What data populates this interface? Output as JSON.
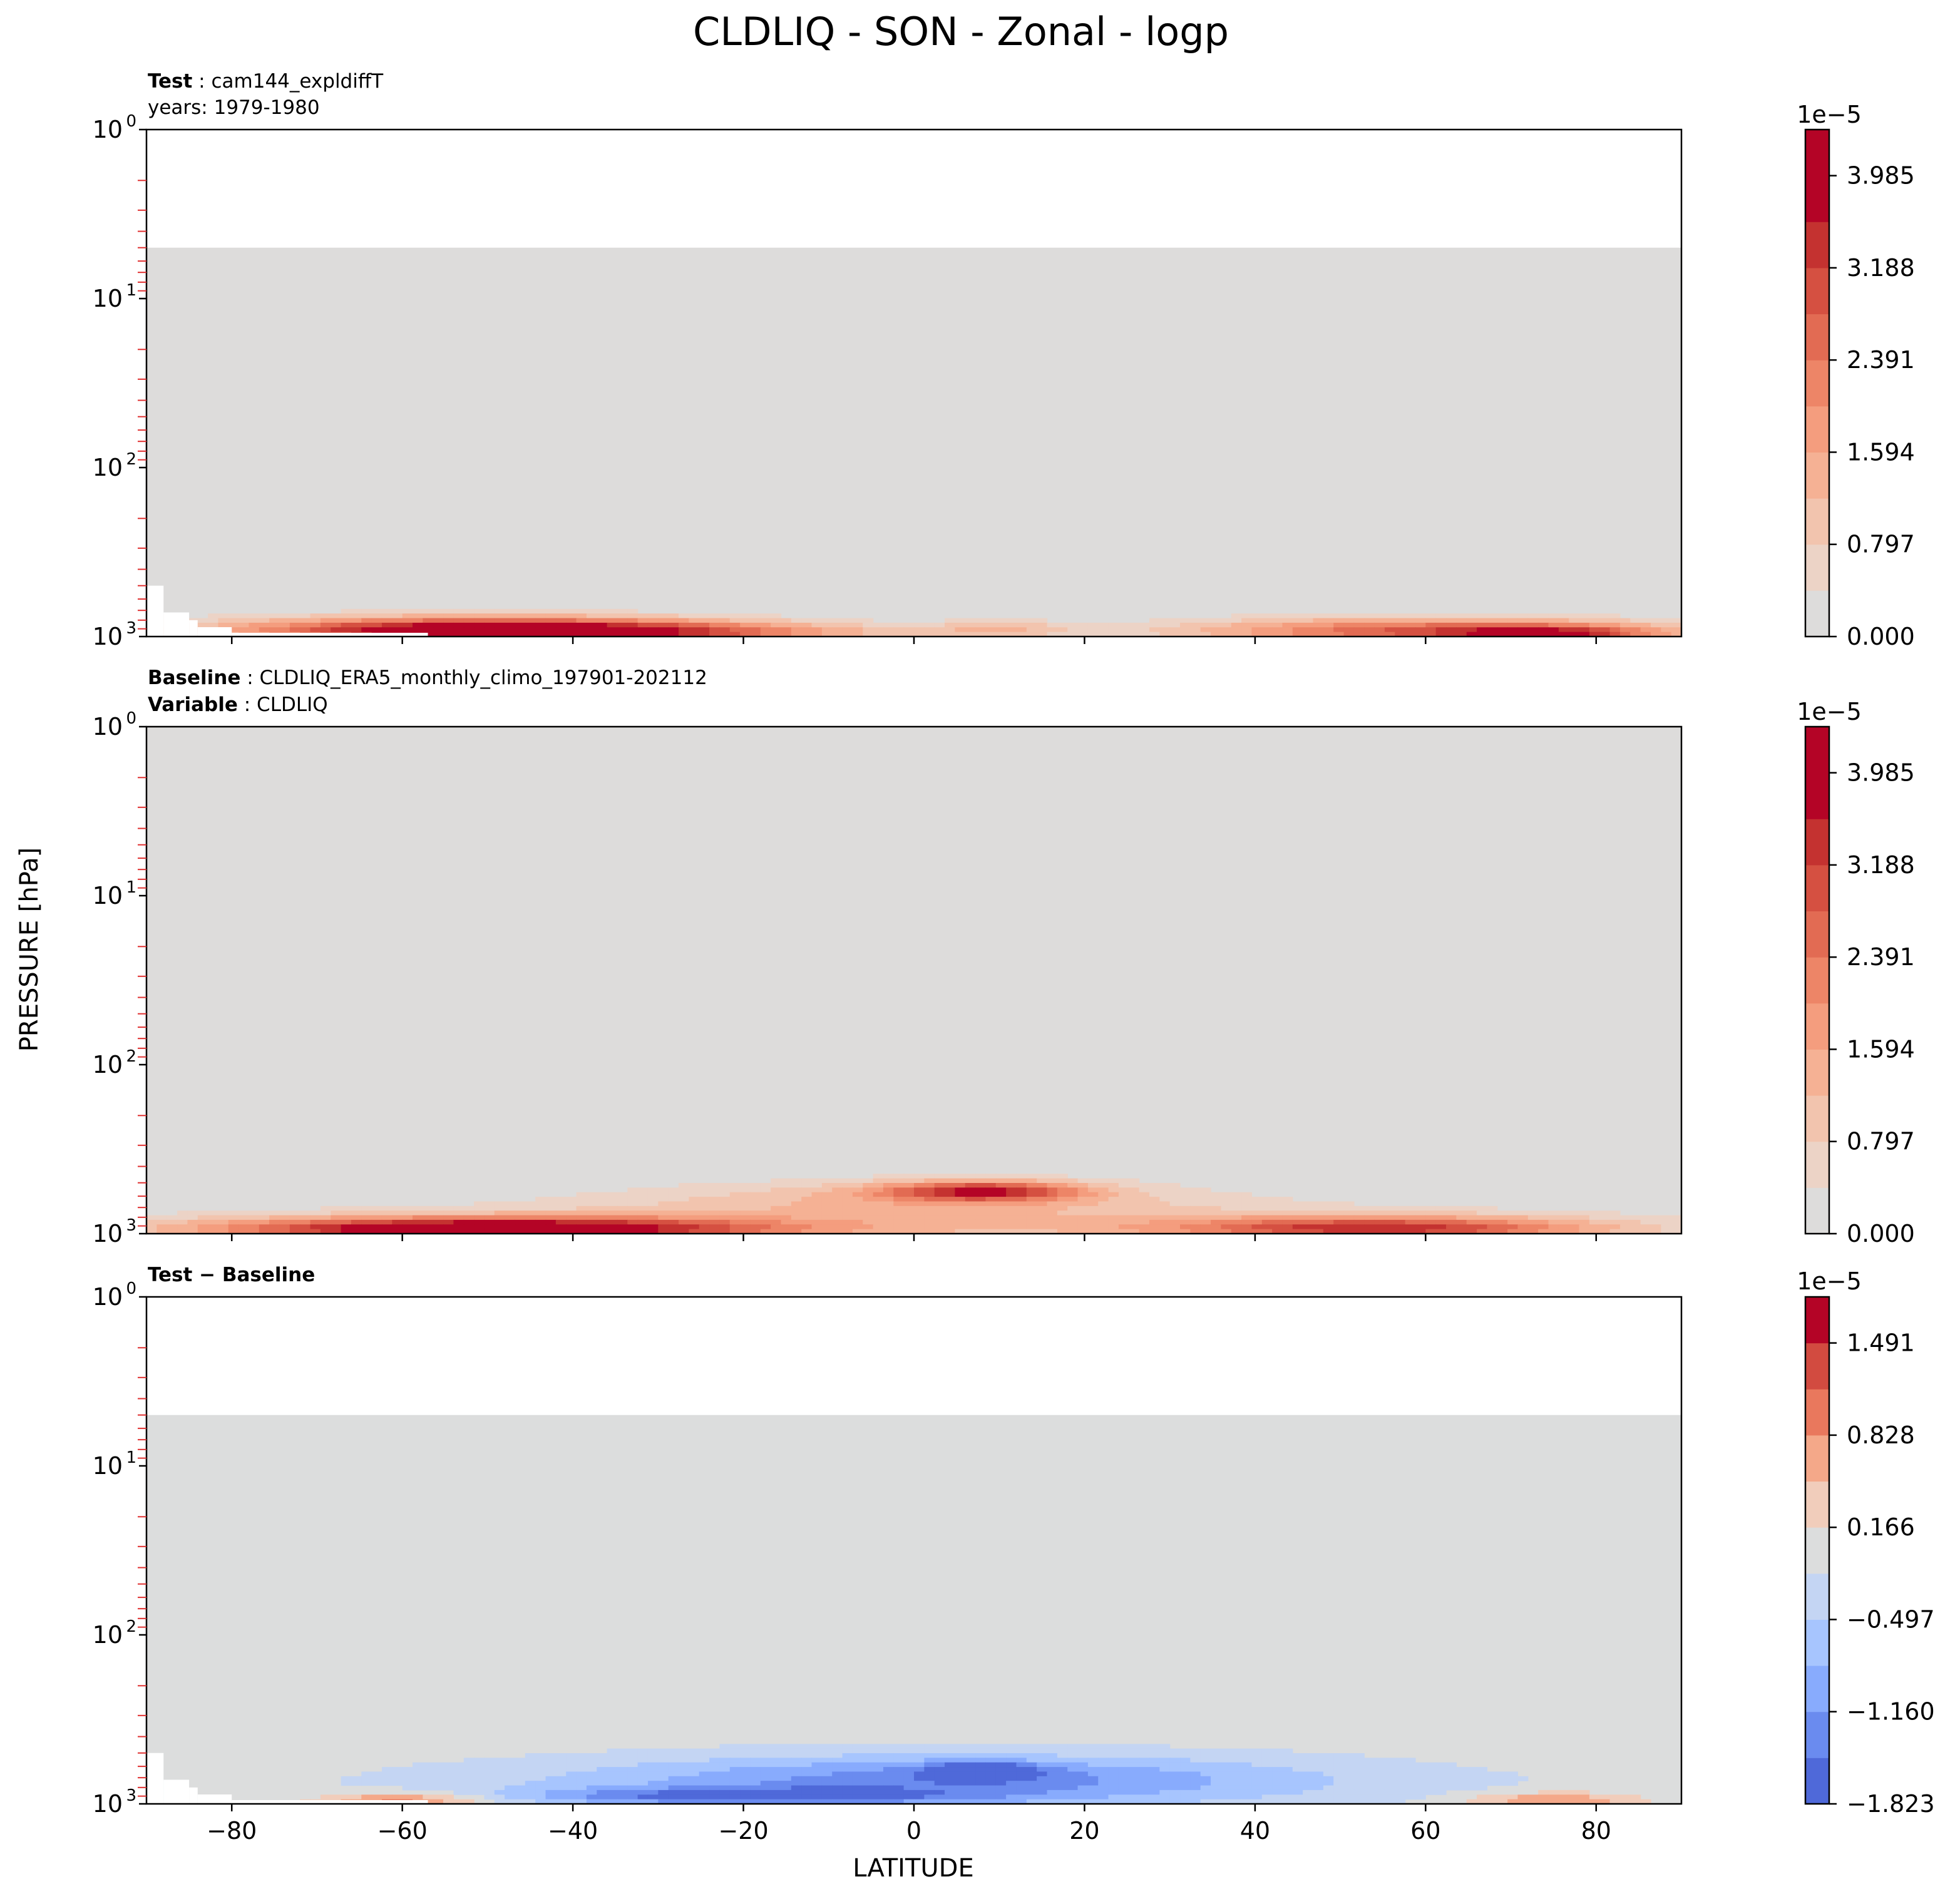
{
  "chart_data": {
    "type": "heatmap",
    "title": "CLDLIQ - SON - Zonal - logp",
    "xlabel": "LATITUDE",
    "ylabel": "PRESSURE [hPa]",
    "xlim": [
      -90,
      90
    ],
    "ylim": [
      1000,
      1
    ],
    "yscale": "log",
    "x_ticks": [
      "−80",
      "−60",
      "−40",
      "−20",
      "0",
      "20",
      "40",
      "60",
      "80"
    ],
    "y_ticks": [
      {
        "base": "10",
        "exp": "0"
      },
      {
        "base": "10",
        "exp": "1"
      },
      {
        "base": "10",
        "exp": "2"
      },
      {
        "base": "10",
        "exp": "3"
      }
    ],
    "panels": [
      {
        "id": "test",
        "label_bold": "Test",
        "label_sep": " : ",
        "label_text": "cam144_expldiffT",
        "line2_bold": "",
        "line2_text": "years: 1979-1980",
        "data_top_hpa": 5,
        "colorbar": {
          "multiplier": "1e−5",
          "ticks": [
            "0.000",
            "0.797",
            "1.594",
            "2.391",
            "3.188",
            "3.985"
          ],
          "levels": [
            "#dddcdb",
            "#ecd3c6",
            "#f2c4ae",
            "#f5b194",
            "#f49d7e",
            "#ed8567",
            "#e26b53",
            "#d55041",
            "#c43230",
            "#b40426",
            "#b40426"
          ]
        },
        "features": [
          {
            "lat": -50,
            "p": 920,
            "dlat": 30,
            "dp": 0.08,
            "value": 4.2
          },
          {
            "lat": -30,
            "p": 960,
            "dlat": 30,
            "dp": 0.06,
            "value": 1.4
          },
          {
            "lat": 10,
            "p": 900,
            "dlat": 8,
            "dp": 0.05,
            "value": 1.0
          },
          {
            "lat": 60,
            "p": 930,
            "dlat": 28,
            "dp": 0.08,
            "value": 2.8
          },
          {
            "lat": 75,
            "p": 970,
            "dlat": 12,
            "dp": 0.05,
            "value": 2.2
          }
        ]
      },
      {
        "id": "baseline",
        "label_bold": "Baseline",
        "label_sep": " : ",
        "label_text": "CLDLIQ_ERA5_monthly_climo_197901-202112",
        "line2_bold": "Variable",
        "line2_text": " : CLDLIQ",
        "data_top_hpa": 1,
        "colorbar": {
          "multiplier": "1e−5",
          "ticks": [
            "0.000",
            "0.797",
            "1.594",
            "2.391",
            "3.188",
            "3.985"
          ],
          "levels": [
            "#dddcdb",
            "#ecd3c6",
            "#f2c4ae",
            "#f5b194",
            "#f49d7e",
            "#ed8567",
            "#e26b53",
            "#d55041",
            "#c43230",
            "#b40426",
            "#b40426"
          ]
        },
        "features": [
          {
            "lat": -50,
            "p": 940,
            "dlat": 32,
            "dp": 0.07,
            "value": 4.3
          },
          {
            "lat": 8,
            "p": 560,
            "dlat": 12,
            "dp": 0.06,
            "value": 3.0
          },
          {
            "lat": 0,
            "p": 620,
            "dlat": 35,
            "dp": 0.12,
            "value": 1.0
          },
          {
            "lat": 55,
            "p": 930,
            "dlat": 25,
            "dp": 0.07,
            "value": 3.0
          },
          {
            "lat": 0,
            "p": 900,
            "dlat": 80,
            "dp": 0.14,
            "value": 0.9
          }
        ]
      },
      {
        "id": "diff",
        "label_bold": "Test − Baseline",
        "label_sep": "",
        "label_text": "",
        "line2_bold": "",
        "line2_text": "",
        "data_top_hpa": 5,
        "colorbar": {
          "multiplier": "1e−5",
          "ticks": [
            "−1.823",
            "−1.160",
            "−0.497",
            "0.166",
            "0.828",
            "1.491"
          ],
          "levels": [
            "#4f69d9",
            "#6a8bef",
            "#88abfd",
            "#a7c5fe",
            "#c4d5f3",
            "#dcdddd",
            "#f1cdbb",
            "#f4a889",
            "#e9785d",
            "#d24b40",
            "#b40426"
          ]
        },
        "features": [
          {
            "lat": -60,
            "p": 960,
            "dlat": 10,
            "dp": 0.05,
            "value": 1.1
          },
          {
            "lat": 75,
            "p": 960,
            "dlat": 10,
            "dp": 0.05,
            "value": 0.9
          },
          {
            "lat": 8,
            "p": 640,
            "dlat": 6,
            "dp": 0.05,
            "value": -1.7
          },
          {
            "lat": 5,
            "p": 700,
            "dlat": 40,
            "dp": 0.14,
            "value": -0.9
          },
          {
            "lat": -20,
            "p": 900,
            "dlat": 25,
            "dp": 0.05,
            "value": -1.2
          },
          {
            "lat": 0,
            "p": 800,
            "dlat": 60,
            "dp": 0.18,
            "value": -0.5
          }
        ]
      }
    ]
  }
}
